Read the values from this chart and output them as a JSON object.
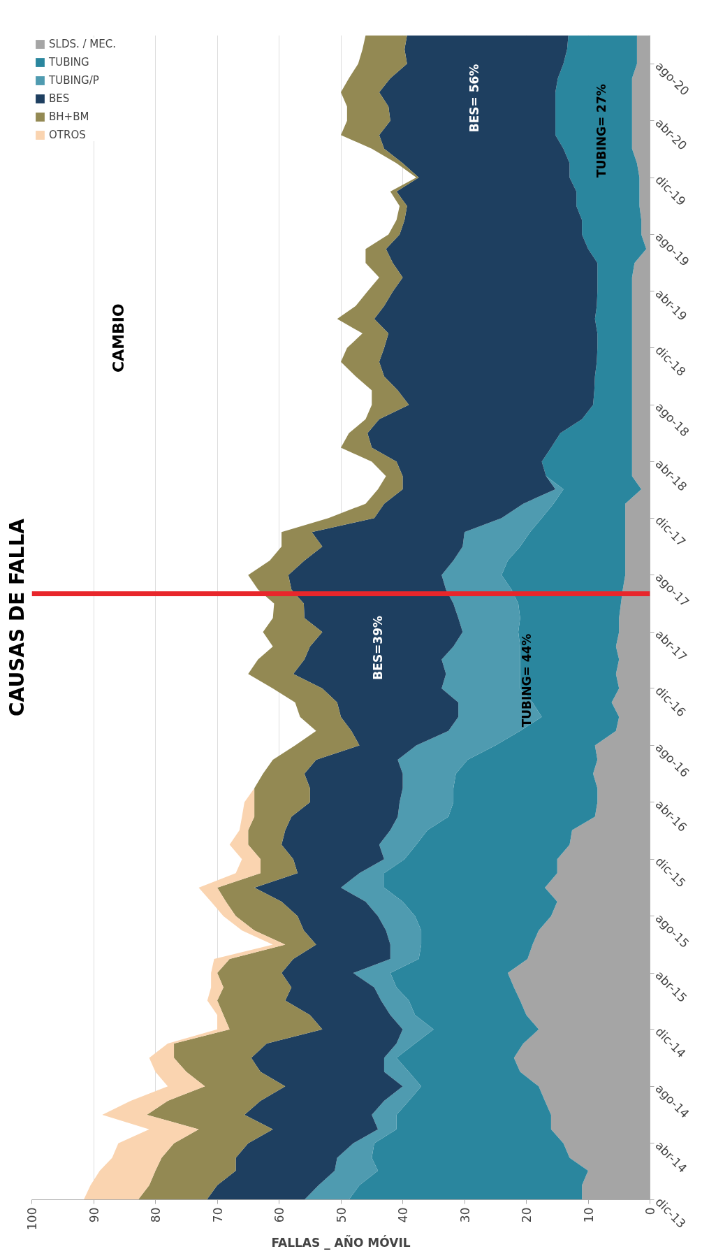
{
  "chart_data": {
    "type": "area",
    "orientation": "horizontal",
    "stacked": true,
    "title": "CAUSAS DE FALLA",
    "xlabel": "FALLAS _ AÑO MÓVIL",
    "x": [
      "2013-12",
      "2014-01",
      "2014-02",
      "2014-03",
      "2014-04",
      "2014-05",
      "2014-06",
      "2014-07",
      "2014-08",
      "2014-09",
      "2014-10",
      "2014-11",
      "2014-12",
      "2015-01",
      "2015-02",
      "2015-03",
      "2015-04",
      "2015-05",
      "2015-06",
      "2015-07",
      "2015-08",
      "2015-09",
      "2015-10",
      "2015-11",
      "2015-12",
      "2016-01",
      "2016-02",
      "2016-03",
      "2016-04",
      "2016-05",
      "2016-06",
      "2016-07",
      "2016-08",
      "2016-09",
      "2016-10",
      "2016-11",
      "2016-12",
      "2017-01",
      "2017-02",
      "2017-03",
      "2017-04",
      "2017-05",
      "2017-06",
      "2017-07",
      "2017-08",
      "2017-09",
      "2017-10",
      "2017-11",
      "2017-12",
      "2018-01",
      "2018-02",
      "2018-03",
      "2018-04",
      "2018-05",
      "2018-06",
      "2018-07",
      "2018-08",
      "2018-09",
      "2018-10",
      "2018-11",
      "2018-12",
      "2019-01",
      "2019-02",
      "2019-03",
      "2019-04",
      "2019-05",
      "2019-06",
      "2019-07",
      "2019-08",
      "2019-09",
      "2019-10",
      "2019-11",
      "2019-12",
      "2020-01",
      "2020-02",
      "2020-03",
      "2020-04",
      "2020-05",
      "2020-06",
      "2020-07",
      "2020-08",
      "2020-09",
      "2020-10"
    ],
    "series": [
      {
        "name": "SLDS. / MEC.",
        "color": "#a5a5a5",
        "values": [
          11,
          11,
          10,
          13,
          14,
          16,
          16,
          17,
          18,
          21,
          22,
          20.5,
          18,
          20,
          21,
          22,
          23,
          19.8,
          19,
          18,
          16,
          15,
          17,
          15,
          15,
          13,
          12.6,
          8.9,
          8.5,
          8.5,
          9.2,
          8.5,
          8.9,
          5.5,
          5,
          6.2,
          5,
          5.5,
          5,
          5.5,
          5,
          5,
          4.7,
          4.4,
          4,
          4,
          4,
          4,
          4,
          4,
          1.4,
          2.9,
          2.9,
          2.9,
          2.9,
          2.9,
          2.9,
          2.9,
          2.9,
          2.9,
          2.9,
          2.9,
          2.9,
          2.9,
          2.9,
          2.9,
          2.5,
          0.6,
          1.4,
          1.4,
          1.7,
          1.7,
          1.7,
          2.1,
          2.9,
          2.9,
          2.9,
          2.9,
          2.9,
          2.9,
          2.1,
          2.1,
          2.1
        ]
      },
      {
        "name": "TUBING",
        "color": "#2a869e",
        "values": [
          37.7,
          36,
          34,
          32,
          30.6,
          25,
          25,
          22,
          19,
          18,
          19,
          17.5,
          17,
          18,
          18,
          19,
          19,
          17.6,
          18,
          19,
          22,
          25,
          26,
          28,
          24.7,
          24.8,
          23.4,
          23.7,
          23.3,
          23.3,
          22.2,
          21,
          16.1,
          15.5,
          12.5,
          12.8,
          16,
          15.5,
          16,
          15.5,
          16.3,
          16,
          16.6,
          18,
          20,
          19,
          17,
          15.4,
          13.5,
          11.6,
          12.6,
          13.9,
          14.6,
          13.1,
          11.6,
          8.1,
          6.3,
          6.1,
          6,
          5.7,
          5.6,
          5.6,
          6,
          5.7,
          5.6,
          5.6,
          6,
          9.4,
          9.6,
          9.6,
          10.2,
          10.2,
          11.3,
          10.9,
          11.1,
          12.4,
          12.4,
          12.4,
          12.4,
          12,
          11.9,
          11.3,
          11.1
        ]
      },
      {
        "name": "TUBING/P",
        "color": "#4f9bb0",
        "values": [
          7.2,
          6.6,
          7,
          5.6,
          3.4,
          3,
          4,
          4,
          3,
          4,
          2,
          3,
          5,
          4,
          4.5,
          3.6,
          6,
          4.6,
          5,
          5.7,
          6,
          6,
          7,
          4,
          3.3,
          6,
          6,
          8.2,
          8.7,
          8.2,
          8.6,
          11.3,
          12.8,
          11.6,
          13.5,
          12,
          12.7,
          12,
          12.7,
          10.8,
          9,
          10,
          10.5,
          10.6,
          9.7,
          8.8,
          9.3,
          10.6,
          6.5,
          4.9,
          1.3,
          0,
          0,
          0,
          0,
          0,
          0,
          0,
          0,
          0,
          0,
          0,
          0,
          0,
          0,
          0,
          0,
          0,
          0,
          0,
          0,
          0,
          0,
          0,
          0,
          0,
          0,
          0,
          0,
          0,
          0,
          0,
          0
        ]
      },
      {
        "name": "BES",
        "color": "#1e3f60",
        "values": [
          15.8,
          16.4,
          16,
          16.4,
          17,
          17,
          20.6,
          20,
          19,
          20,
          21.5,
          21,
          13,
          13,
          15.5,
          13.4,
          11.6,
          15.7,
          12,
          13.3,
          13,
          13.6,
          14,
          10,
          14.7,
          15.8,
          17,
          17.2,
          14.5,
          15,
          15.9,
          13.2,
          9.2,
          15.7,
          19,
          19.6,
          19.3,
          24.7,
          22.2,
          23.2,
          22.7,
          24.9,
          24.2,
          25,
          24.8,
          24.1,
          22.7,
          24.7,
          20.6,
          22.5,
          24.7,
          23.2,
          23.5,
          29,
          31.2,
          32.8,
          29.8,
          31.8,
          34.1,
          35.2,
          34.5,
          33.8,
          35.7,
          34.4,
          33.1,
          31.5,
          33.1,
          32.7,
          29.5,
          28.7,
          27.4,
          29.1,
          24.4,
          27,
          29,
          28.5,
          26.7,
          27,
          28.5,
          27.1,
          25.3,
          26.3,
          26.1
        ]
      },
      {
        "name": "BH+BM",
        "color": "#938953",
        "values": [
          11.1,
          11,
          13,
          12,
          12,
          12,
          15.8,
          15,
          13,
          12,
          12.5,
          15,
          15,
          14,
          11,
          11,
          10.4,
          10.3,
          5,
          8,
          10,
          9,
          6,
          6,
          5.3,
          5.4,
          6,
          6,
          9,
          9,
          6.7,
          7,
          10.4,
          5.7,
          6.6,
          6.8,
          8,
          7.3,
          7.5,
          6,
          9.6,
          5.1,
          4.8,
          5.4,
          6.5,
          5.6,
          6.6,
          4.9,
          7.4,
          3,
          4,
          2.7,
          4,
          5,
          3,
          2.2,
          6,
          4.2,
          4.6,
          6.2,
          6,
          4.2,
          6,
          4.6,
          4.1,
          3.8,
          4.4,
          3.3,
          1.8,
          1.3,
          1.2,
          1,
          0.4,
          1,
          2,
          6.2,
          7,
          6.7,
          6.2,
          6.7,
          7.9,
          6.8,
          6.7
        ]
      },
      {
        "name": "OTROS",
        "color": "#fad4b0",
        "values": [
          8.8,
          9.5,
          9,
          8,
          9,
          8,
          7.2,
          6,
          6,
          5,
          4,
          1,
          2,
          1,
          1.6,
          2,
          1,
          2.5,
          2,
          2,
          2,
          2.4,
          3,
          4,
          3,
          3,
          1.4,
          2,
          1.6,
          0,
          0,
          0,
          0,
          0,
          0,
          0,
          0,
          0,
          0,
          0,
          0,
          0,
          0,
          0,
          0,
          0,
          0,
          0,
          0,
          0,
          0,
          0,
          0,
          0,
          0,
          0,
          0,
          0,
          0,
          0,
          0,
          0,
          0,
          0,
          0,
          0,
          0,
          0,
          0,
          0,
          0,
          0,
          0,
          0,
          0,
          0,
          0,
          0,
          0,
          0,
          0,
          0,
          0
        ]
      }
    ],
    "xlim": [
      100,
      0
    ],
    "xticks": [
      0,
      10,
      20,
      30,
      40,
      50,
      60,
      70,
      80,
      90,
      100
    ],
    "ylim": [
      "2013-12",
      "2020-10"
    ],
    "yticks": [
      {
        "value": "2013-12",
        "label": "dic-13"
      },
      {
        "value": "2014-04",
        "label": "abr-14"
      },
      {
        "value": "2014-08",
        "label": "ago-14"
      },
      {
        "value": "2014-12",
        "label": "dic-14"
      },
      {
        "value": "2015-04",
        "label": "abr-15"
      },
      {
        "value": "2015-08",
        "label": "ago-15"
      },
      {
        "value": "2015-12",
        "label": "dic-15"
      },
      {
        "value": "2016-04",
        "label": "abr-16"
      },
      {
        "value": "2016-08",
        "label": "ago-16"
      },
      {
        "value": "2016-12",
        "label": "dic-16"
      },
      {
        "value": "2017-04",
        "label": "abr-17"
      },
      {
        "value": "2017-08",
        "label": "ago-17"
      },
      {
        "value": "2017-12",
        "label": "dic-17"
      },
      {
        "value": "2018-04",
        "label": "abr-18"
      },
      {
        "value": "2018-08",
        "label": "ago-18"
      },
      {
        "value": "2018-12",
        "label": "dic-18"
      },
      {
        "value": "2019-04",
        "label": "abr-19"
      },
      {
        "value": "2019-08",
        "label": "ago-19"
      },
      {
        "value": "2019-12",
        "label": "dic-19"
      },
      {
        "value": "2020-04",
        "label": "abr-20"
      },
      {
        "value": "2020-08",
        "label": "ago-20"
      }
    ],
    "grid": "x",
    "legend": "top left",
    "ref_lines": [
      {
        "axis": "y",
        "value": "2017-06-22",
        "color": "#e8262b"
      }
    ],
    "annotations": [
      "BES=39%",
      "TUBING= 44%",
      "BES= 56%",
      "TUBING= 27%",
      "CAMBIO"
    ]
  }
}
